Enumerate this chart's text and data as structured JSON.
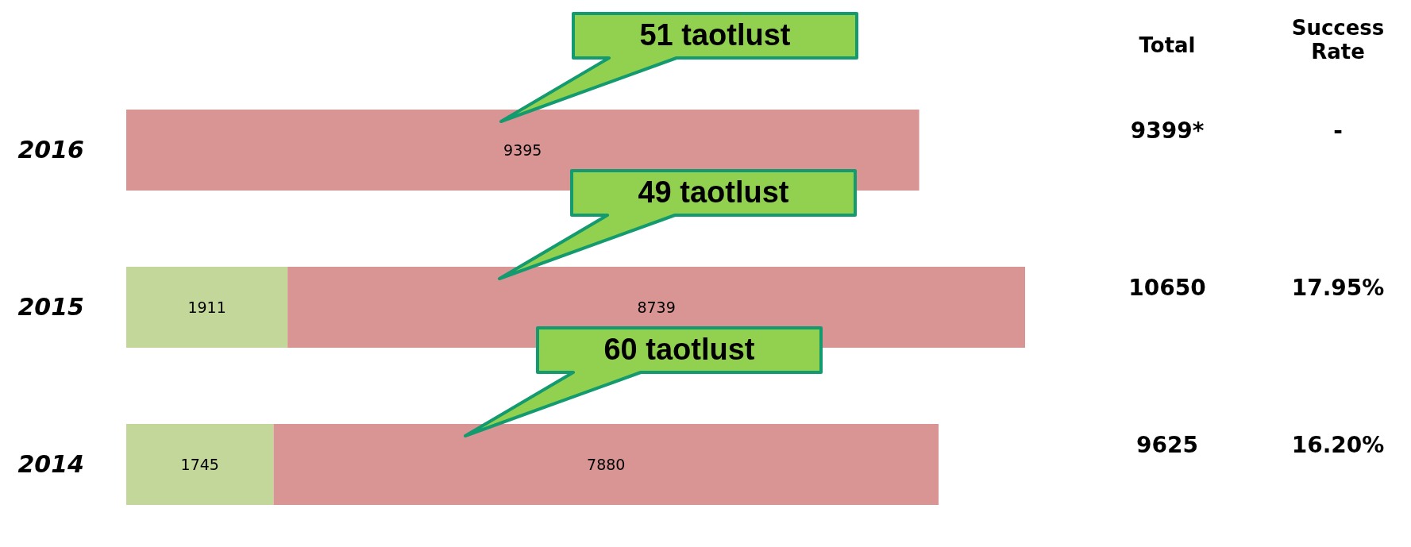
{
  "chart_data": {
    "type": "bar",
    "orientation": "horizontal",
    "stacked": true,
    "categories": [
      "2016",
      "2015",
      "2014"
    ],
    "series": [
      {
        "color": "#c4d79b",
        "values": [
          null,
          1911,
          1745
        ]
      },
      {
        "color": "#d99594",
        "values": [
          9395,
          8739,
          7880
        ]
      }
    ],
    "data_labels": true,
    "annotations": [
      "51 taotlust",
      "49 taotlust",
      "60 taotlust",
      "Total",
      "Success Rate",
      "9399*",
      "-",
      "10650",
      "17.95%",
      "9625",
      "16.20%"
    ]
  }
}
